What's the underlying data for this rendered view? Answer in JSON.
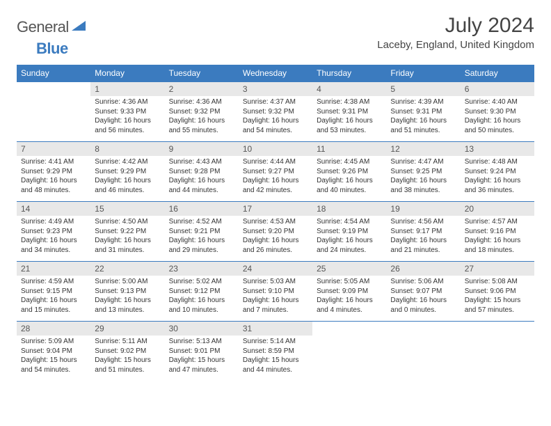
{
  "logo": {
    "word1": "General",
    "word2": "Blue"
  },
  "title": "July 2024",
  "location": "Laceby, England, United Kingdom",
  "colors": {
    "header_bg": "#3b7bbf",
    "daynum_bg": "#e8e8e8",
    "text": "#333333",
    "border": "#3b7bbf"
  },
  "weekdays": [
    "Sunday",
    "Monday",
    "Tuesday",
    "Wednesday",
    "Thursday",
    "Friday",
    "Saturday"
  ],
  "start_offset": 1,
  "days": [
    {
      "n": 1,
      "sr": "4:36 AM",
      "ss": "9:33 PM",
      "dl": "16 hours and 56 minutes."
    },
    {
      "n": 2,
      "sr": "4:36 AM",
      "ss": "9:32 PM",
      "dl": "16 hours and 55 minutes."
    },
    {
      "n": 3,
      "sr": "4:37 AM",
      "ss": "9:32 PM",
      "dl": "16 hours and 54 minutes."
    },
    {
      "n": 4,
      "sr": "4:38 AM",
      "ss": "9:31 PM",
      "dl": "16 hours and 53 minutes."
    },
    {
      "n": 5,
      "sr": "4:39 AM",
      "ss": "9:31 PM",
      "dl": "16 hours and 51 minutes."
    },
    {
      "n": 6,
      "sr": "4:40 AM",
      "ss": "9:30 PM",
      "dl": "16 hours and 50 minutes."
    },
    {
      "n": 7,
      "sr": "4:41 AM",
      "ss": "9:29 PM",
      "dl": "16 hours and 48 minutes."
    },
    {
      "n": 8,
      "sr": "4:42 AM",
      "ss": "9:29 PM",
      "dl": "16 hours and 46 minutes."
    },
    {
      "n": 9,
      "sr": "4:43 AM",
      "ss": "9:28 PM",
      "dl": "16 hours and 44 minutes."
    },
    {
      "n": 10,
      "sr": "4:44 AM",
      "ss": "9:27 PM",
      "dl": "16 hours and 42 minutes."
    },
    {
      "n": 11,
      "sr": "4:45 AM",
      "ss": "9:26 PM",
      "dl": "16 hours and 40 minutes."
    },
    {
      "n": 12,
      "sr": "4:47 AM",
      "ss": "9:25 PM",
      "dl": "16 hours and 38 minutes."
    },
    {
      "n": 13,
      "sr": "4:48 AM",
      "ss": "9:24 PM",
      "dl": "16 hours and 36 minutes."
    },
    {
      "n": 14,
      "sr": "4:49 AM",
      "ss": "9:23 PM",
      "dl": "16 hours and 34 minutes."
    },
    {
      "n": 15,
      "sr": "4:50 AM",
      "ss": "9:22 PM",
      "dl": "16 hours and 31 minutes."
    },
    {
      "n": 16,
      "sr": "4:52 AM",
      "ss": "9:21 PM",
      "dl": "16 hours and 29 minutes."
    },
    {
      "n": 17,
      "sr": "4:53 AM",
      "ss": "9:20 PM",
      "dl": "16 hours and 26 minutes."
    },
    {
      "n": 18,
      "sr": "4:54 AM",
      "ss": "9:19 PM",
      "dl": "16 hours and 24 minutes."
    },
    {
      "n": 19,
      "sr": "4:56 AM",
      "ss": "9:17 PM",
      "dl": "16 hours and 21 minutes."
    },
    {
      "n": 20,
      "sr": "4:57 AM",
      "ss": "9:16 PM",
      "dl": "16 hours and 18 minutes."
    },
    {
      "n": 21,
      "sr": "4:59 AM",
      "ss": "9:15 PM",
      "dl": "16 hours and 15 minutes."
    },
    {
      "n": 22,
      "sr": "5:00 AM",
      "ss": "9:13 PM",
      "dl": "16 hours and 13 minutes."
    },
    {
      "n": 23,
      "sr": "5:02 AM",
      "ss": "9:12 PM",
      "dl": "16 hours and 10 minutes."
    },
    {
      "n": 24,
      "sr": "5:03 AM",
      "ss": "9:10 PM",
      "dl": "16 hours and 7 minutes."
    },
    {
      "n": 25,
      "sr": "5:05 AM",
      "ss": "9:09 PM",
      "dl": "16 hours and 4 minutes."
    },
    {
      "n": 26,
      "sr": "5:06 AM",
      "ss": "9:07 PM",
      "dl": "16 hours and 0 minutes."
    },
    {
      "n": 27,
      "sr": "5:08 AM",
      "ss": "9:06 PM",
      "dl": "15 hours and 57 minutes."
    },
    {
      "n": 28,
      "sr": "5:09 AM",
      "ss": "9:04 PM",
      "dl": "15 hours and 54 minutes."
    },
    {
      "n": 29,
      "sr": "5:11 AM",
      "ss": "9:02 PM",
      "dl": "15 hours and 51 minutes."
    },
    {
      "n": 30,
      "sr": "5:13 AM",
      "ss": "9:01 PM",
      "dl": "15 hours and 47 minutes."
    },
    {
      "n": 31,
      "sr": "5:14 AM",
      "ss": "8:59 PM",
      "dl": "15 hours and 44 minutes."
    }
  ],
  "labels": {
    "sunrise": "Sunrise:",
    "sunset": "Sunset:",
    "daylight": "Daylight:"
  }
}
